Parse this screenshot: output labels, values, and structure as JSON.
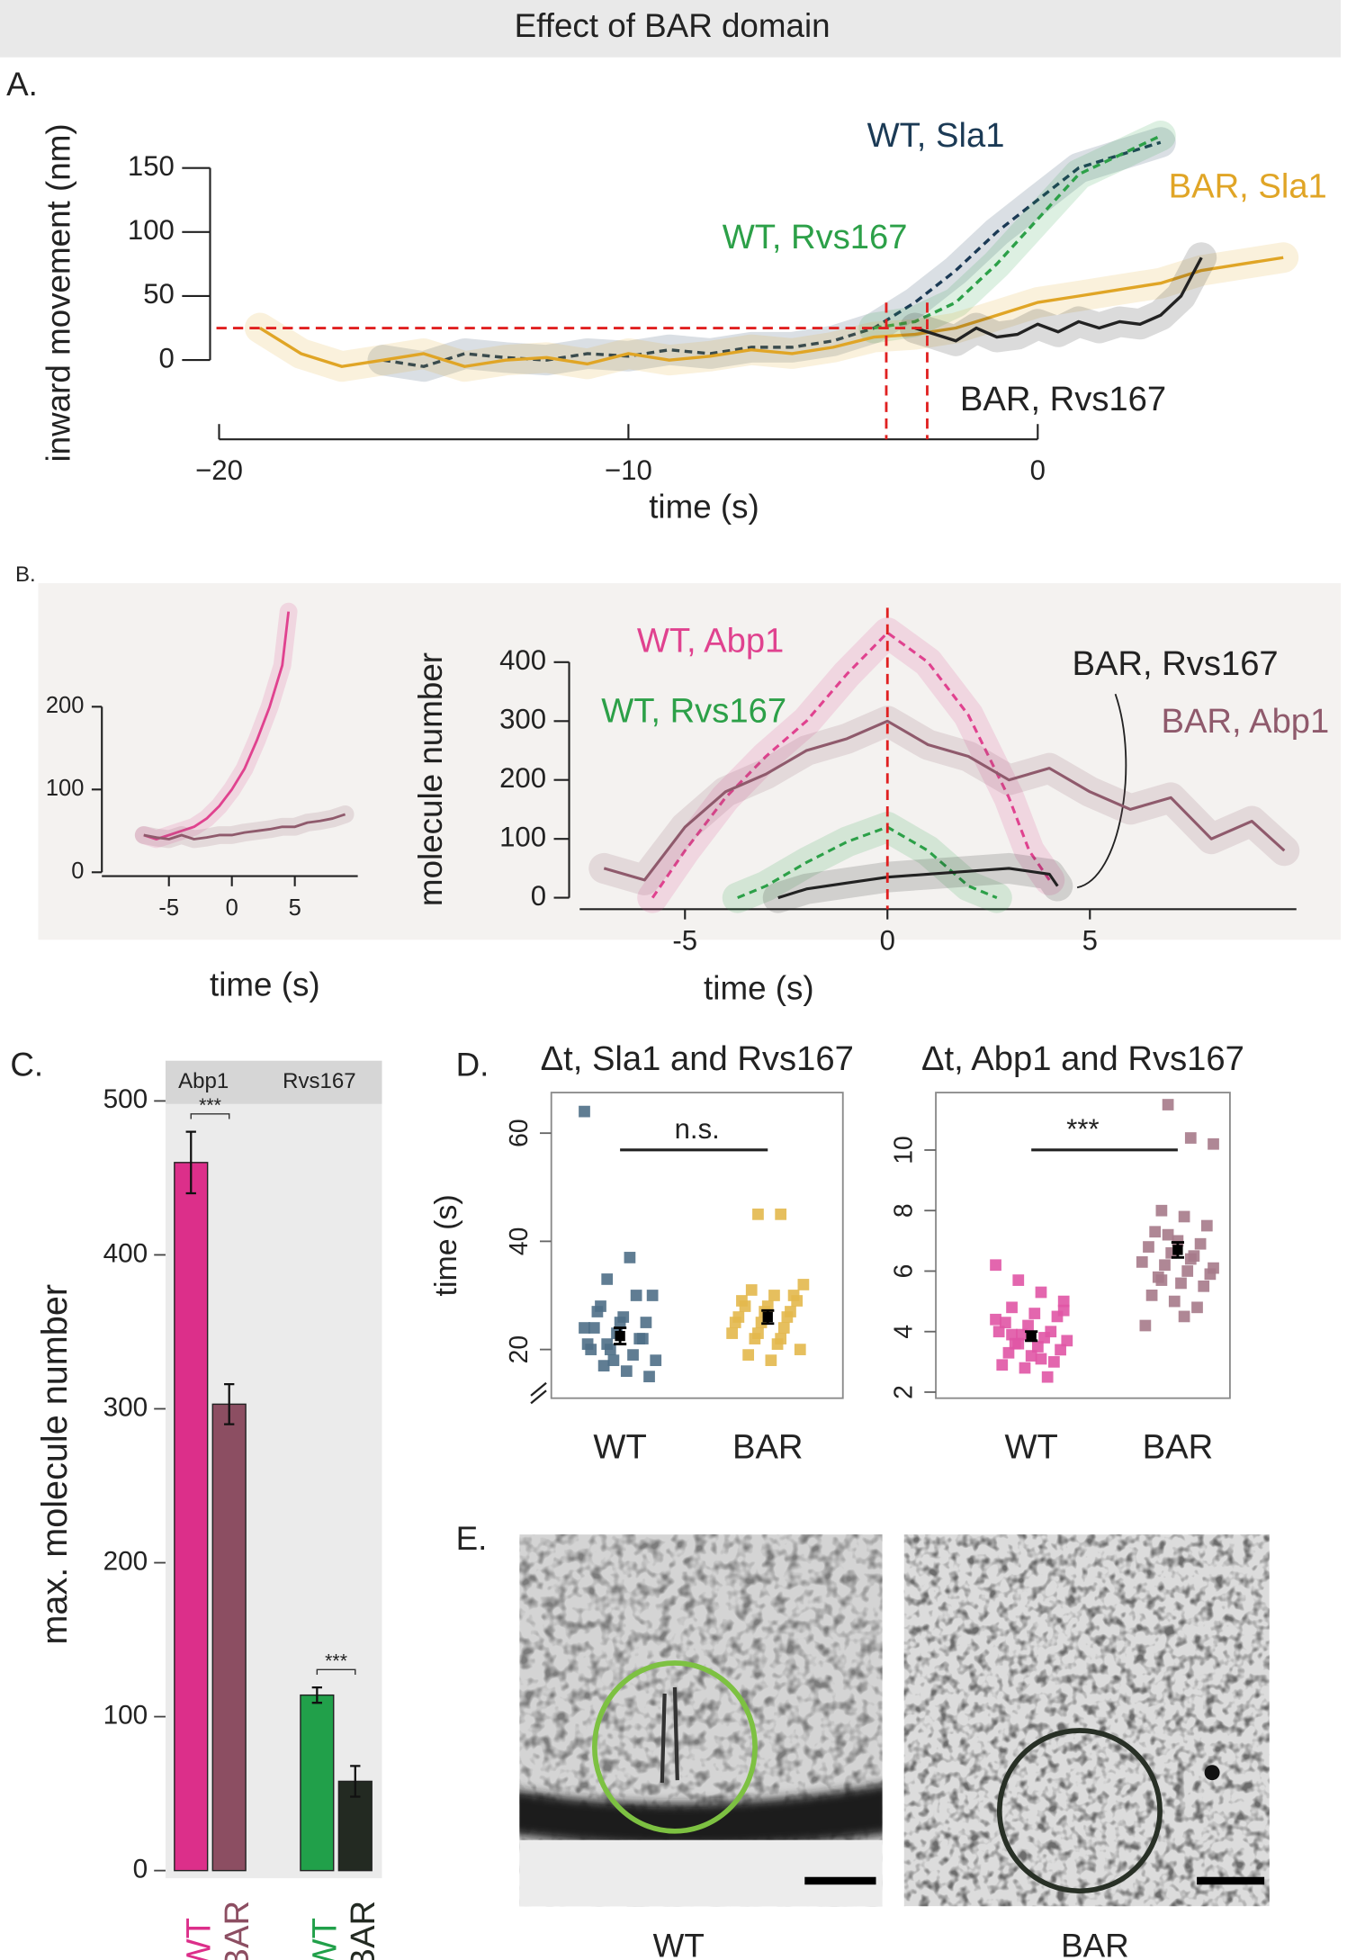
{
  "title": "Effect of BAR domain",
  "chart_data": [
    {
      "type": "line",
      "label": "A.",
      "xlabel": "time (s)",
      "ylabel": "inward movement (nm)",
      "xlim": [
        -20.5,
        6.5
      ],
      "ylim": [
        -40,
        200
      ],
      "xticks": [
        {
          "value": -20,
          "label": "−20"
        },
        {
          "value": -10,
          "label": "−10"
        },
        0
      ],
      "yticks": [
        0,
        50,
        100,
        150
      ],
      "reference_lines": {
        "y": 25,
        "x": [
          -3.7,
          -2.7
        ],
        "color": "#e02020"
      },
      "series": [
        {
          "name": "WT, Sla1",
          "color": "#1b3a55",
          "style": "dashed",
          "x": [
            -16,
            -15,
            -14,
            -13,
            -12,
            -11,
            -10,
            -9,
            -8,
            -7,
            -6,
            -5,
            -4,
            -3,
            -2,
            -1,
            0,
            1,
            2,
            3
          ],
          "values": [
            0,
            -5,
            5,
            2,
            0,
            5,
            3,
            8,
            5,
            10,
            10,
            15,
            25,
            45,
            70,
            100,
            125,
            150,
            160,
            170
          ]
        },
        {
          "name": "WT, Rvs167",
          "color": "#2ca048",
          "style": "dashed",
          "x": [
            -4,
            -3,
            -2,
            -1,
            0,
            1,
            2,
            3
          ],
          "values": [
            25,
            30,
            45,
            75,
            110,
            145,
            160,
            175
          ]
        },
        {
          "name": "BAR, Sla1",
          "color": "#e0a526",
          "style": "solid",
          "x": [
            -19,
            -18,
            -17,
            -16,
            -15,
            -14,
            -13,
            -12,
            -11,
            -10,
            -9,
            -8,
            -7,
            -6,
            -5,
            -4,
            -3,
            -2,
            -1,
            0,
            1,
            2,
            3,
            4,
            5,
            6
          ],
          "values": [
            25,
            5,
            -5,
            0,
            5,
            -5,
            0,
            2,
            -3,
            5,
            0,
            3,
            8,
            5,
            10,
            18,
            20,
            25,
            35,
            45,
            50,
            55,
            60,
            70,
            75,
            80
          ]
        },
        {
          "name": "BAR, Rvs167",
          "color": "#222222",
          "style": "solid",
          "x": [
            -3,
            -2.5,
            -2,
            -1.5,
            -1,
            -0.5,
            0,
            0.5,
            1,
            1.5,
            2,
            2.5,
            3,
            3.5,
            4
          ],
          "values": [
            25,
            20,
            15,
            25,
            18,
            20,
            28,
            22,
            30,
            25,
            30,
            28,
            35,
            50,
            80
          ]
        }
      ]
    },
    {
      "type": "line",
      "label": "B.",
      "xlabel": "time (s)",
      "xlim": [
        -8,
        10
      ],
      "ylim": [
        -10,
        330
      ],
      "xticks": [
        -5,
        0,
        5
      ],
      "yticks": [
        0,
        100,
        200
      ],
      "series": [
        {
          "color": "#e0428f",
          "style": "solid",
          "x": [
            -7,
            -6,
            -5,
            -4,
            -3,
            -2,
            -1,
            0,
            1,
            2,
            3,
            4,
            4.5
          ],
          "values": [
            45,
            40,
            45,
            50,
            55,
            65,
            80,
            100,
            125,
            160,
            200,
            250,
            315
          ]
        },
        {
          "color": "#8f5a6c",
          "style": "solid",
          "x": [
            -7,
            -6,
            -5,
            -4,
            -3,
            -2,
            -1,
            0,
            1,
            2,
            3,
            4,
            5,
            6,
            7,
            8,
            9
          ],
          "values": [
            45,
            42,
            40,
            45,
            40,
            42,
            45,
            45,
            48,
            50,
            52,
            55,
            55,
            60,
            62,
            65,
            70
          ]
        }
      ]
    },
    {
      "type": "line",
      "xlabel": "time (s)",
      "ylabel": "molecule number",
      "xlim": [
        -7.6,
        10.1
      ],
      "ylim": [
        -20,
        460
      ],
      "xticks": [
        -5,
        0,
        5
      ],
      "yticks": [
        0,
        100,
        200,
        300,
        400
      ],
      "reference_lines": {
        "x": [
          0
        ],
        "color": "#e02020"
      },
      "series": [
        {
          "name": "WT, Abp1",
          "color": "#e0428f",
          "style": "dashed",
          "x": [
            -5.8,
            -5,
            -4,
            -3,
            -2,
            -1,
            0,
            1,
            2,
            3,
            3.5,
            4
          ],
          "values": [
            0,
            80,
            170,
            240,
            300,
            380,
            450,
            400,
            310,
            170,
            80,
            30
          ]
        },
        {
          "name": "WT, Rvs167",
          "color": "#2ca048",
          "style": "dashed",
          "x": [
            -3.7,
            -3,
            -2,
            -1,
            0,
            1,
            2,
            2.7
          ],
          "values": [
            0,
            20,
            60,
            95,
            120,
            80,
            20,
            0
          ]
        },
        {
          "name": "BAR, Rvs167",
          "color": "#222222",
          "style": "solid",
          "x": [
            -2.7,
            -2,
            -1,
            0,
            1,
            2,
            3,
            4,
            4.2
          ],
          "values": [
            0,
            15,
            25,
            35,
            40,
            45,
            50,
            40,
            20
          ]
        },
        {
          "name": "BAR, Abp1",
          "color": "#8f5a6c",
          "style": "solid",
          "x": [
            -7,
            -6,
            -5,
            -4,
            -3,
            -2,
            -1,
            0,
            1,
            2,
            3,
            4,
            5,
            6,
            7,
            8,
            9,
            9.8
          ],
          "values": [
            50,
            30,
            120,
            180,
            210,
            250,
            270,
            300,
            260,
            240,
            200,
            220,
            180,
            150,
            170,
            100,
            130,
            80
          ]
        }
      ]
    },
    {
      "type": "bar",
      "label": "C.",
      "ylabel": "max. molecule number",
      "ylim": [
        -2.5,
        498
      ],
      "yticks": [
        0,
        100,
        200,
        300,
        400,
        500
      ],
      "facets": [
        {
          "name": "Abp1",
          "significance": "***",
          "categories": [
            "WT",
            "BAR"
          ],
          "values": [
            460,
            303
          ],
          "errors": [
            20,
            13
          ],
          "colors": [
            "#dc2f8a",
            "#8c4e62"
          ]
        },
        {
          "name": "Rvs167",
          "significance": "***",
          "categories": [
            "WT",
            "BAR"
          ],
          "values": [
            114,
            58
          ],
          "errors": [
            5,
            10
          ],
          "colors": [
            "#21a04a",
            "#232a22"
          ]
        }
      ]
    },
    {
      "type": "strip",
      "label": "D.",
      "title": "Δt, Sla1 and Rvs167",
      "ylabel": "time (s)",
      "ylim": [
        11,
        67.5
      ],
      "yticks": [
        20,
        40,
        60
      ],
      "annotation": "n.s.",
      "categories": [
        "WT",
        "BAR"
      ],
      "series": [
        {
          "color": "#4f6f87",
          "mean": 22.5,
          "error": 1.5,
          "values": [
            64,
            33,
            37,
            30,
            28,
            26,
            25,
            24,
            23,
            22,
            21,
            20,
            19,
            18,
            17,
            16,
            15,
            27,
            25,
            22,
            20,
            18,
            30,
            24,
            21
          ]
        },
        {
          "color": "#e3b84c",
          "mean": 26,
          "error": 1.2,
          "values": [
            45,
            45,
            32,
            31,
            30,
            29,
            28,
            28,
            27,
            26,
            25,
            24,
            23,
            22,
            21,
            20,
            19,
            18,
            30,
            29,
            27,
            26,
            25,
            23,
            22
          ]
        }
      ]
    },
    {
      "type": "strip",
      "title": "Δt, Abp1 and Rvs167",
      "ylim": [
        1.8,
        11.9
      ],
      "yticks": [
        2,
        4,
        6,
        8,
        10
      ],
      "annotation": "***",
      "categories": [
        "WT",
        "BAR"
      ],
      "series": [
        {
          "color": "#e055a5",
          "mean": 3.85,
          "error": 0.15,
          "values": [
            6.2,
            5.7,
            5.3,
            5.0,
            4.8,
            4.6,
            4.5,
            4.3,
            4.2,
            4.0,
            4.0,
            3.9,
            3.8,
            3.7,
            3.6,
            3.5,
            3.4,
            3.3,
            3.2,
            3.0,
            2.9,
            2.8,
            2.5,
            4.4,
            3.6,
            3.1,
            4.7,
            3.9
          ]
        },
        {
          "color": "#a67a8a",
          "mean": 6.7,
          "error": 0.25,
          "values": [
            11.5,
            10.4,
            10.2,
            8.0,
            7.8,
            7.5,
            7.3,
            7.0,
            6.9,
            6.8,
            6.6,
            6.5,
            6.3,
            6.2,
            6.0,
            5.9,
            5.8,
            5.6,
            5.5,
            5.2,
            5.0,
            4.8,
            4.2,
            7.2,
            6.4,
            6.1,
            5.7,
            4.5
          ]
        }
      ]
    }
  ],
  "micrographs": {
    "label": "E.",
    "captions": [
      "WT",
      "BAR"
    ]
  }
}
